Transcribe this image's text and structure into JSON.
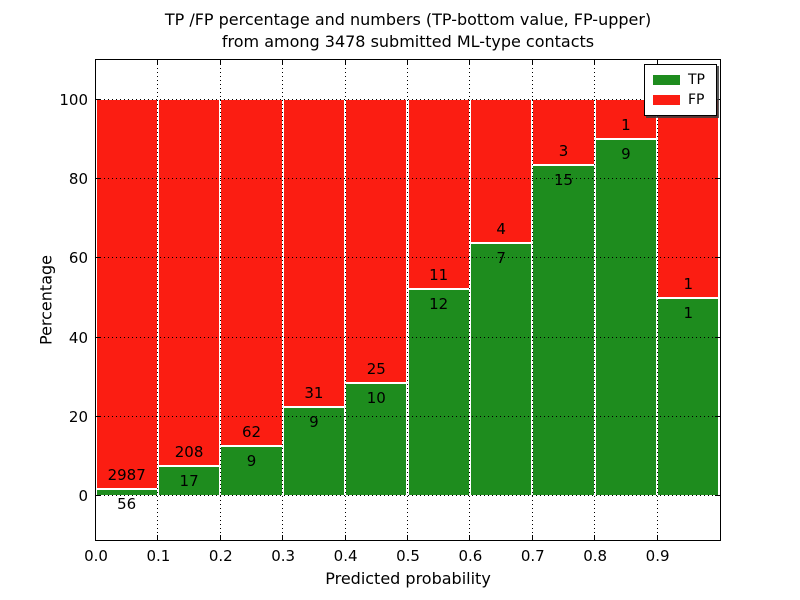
{
  "chart_data": {
    "type": "bar",
    "stacked": true,
    "title": "TP /FP percentage and numbers (TP-bottom value, FP-upper)\nfrom among 3478 submitted ML-type contacts",
    "title_lines": [
      "TP /FP percentage and numbers (TP-bottom value, FP-upper)",
      "from among 3478 submitted ML-type contacts"
    ],
    "xlabel": "Predicted probability",
    "ylabel": "Percentage",
    "xlim": [
      0,
      1
    ],
    "ylim": [
      -11,
      110
    ],
    "grid": true,
    "legend_position": "upper right",
    "total_contacts": 3478,
    "x_tick_labels": [
      "0.0",
      "0.1",
      "0.2",
      "0.3",
      "0.4",
      "0.5",
      "0.6",
      "0.7",
      "0.8",
      "0.9"
    ],
    "x_tick_values": [
      0.0,
      0.1,
      0.2,
      0.3,
      0.4,
      0.5,
      0.6,
      0.7,
      0.8,
      0.9
    ],
    "y_tick_values": [
      0,
      20,
      40,
      60,
      80,
      100
    ],
    "series": [
      {
        "name": "TP",
        "color": "#1e8c1e",
        "values": [
          56,
          17,
          9,
          9,
          10,
          12,
          7,
          15,
          9,
          1
        ]
      },
      {
        "name": "FP",
        "color": "#fb1d12",
        "values": [
          2987,
          208,
          62,
          31,
          25,
          11,
          4,
          3,
          1,
          1
        ]
      }
    ],
    "bins": [
      {
        "range": [
          0.0,
          0.1
        ],
        "tp": 56,
        "fp": 2987,
        "tp_percent": 1.84
      },
      {
        "range": [
          0.1,
          0.2
        ],
        "tp": 17,
        "fp": 208,
        "tp_percent": 7.56
      },
      {
        "range": [
          0.2,
          0.3
        ],
        "tp": 9,
        "fp": 62,
        "tp_percent": 12.68
      },
      {
        "range": [
          0.3,
          0.4
        ],
        "tp": 9,
        "fp": 31,
        "tp_percent": 22.5
      },
      {
        "range": [
          0.4,
          0.5
        ],
        "tp": 10,
        "fp": 25,
        "tp_percent": 28.57
      },
      {
        "range": [
          0.5,
          0.6
        ],
        "tp": 12,
        "fp": 11,
        "tp_percent": 52.17
      },
      {
        "range": [
          0.6,
          0.7
        ],
        "tp": 7,
        "fp": 4,
        "tp_percent": 63.64
      },
      {
        "range": [
          0.7,
          0.8
        ],
        "tp": 15,
        "fp": 3,
        "tp_percent": 83.33
      },
      {
        "range": [
          0.8,
          0.9
        ],
        "tp": 9,
        "fp": 1,
        "tp_percent": 90.0
      },
      {
        "range": [
          0.9,
          1.0
        ],
        "tp": 1,
        "fp": 1,
        "tp_percent": 50.0
      }
    ]
  }
}
